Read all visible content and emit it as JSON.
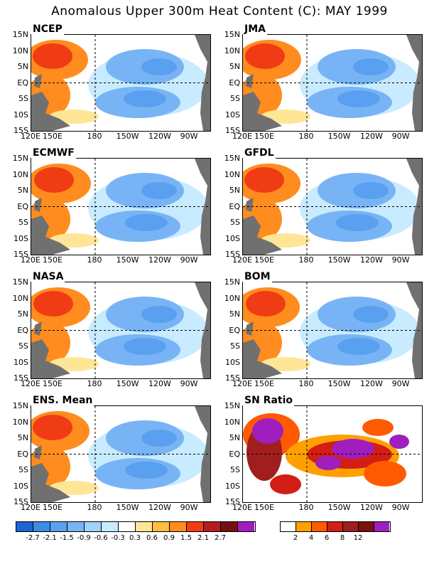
{
  "title": "Anomalous Upper 300m Heat Content (C): MAY 1999",
  "lat_labels": [
    "15N",
    "10N",
    "5N",
    "EQ",
    "5S",
    "10S",
    "15S"
  ],
  "lon_labels": [
    "120E",
    "150E",
    "180",
    "150W",
    "120W",
    "90W"
  ],
  "panels": [
    {
      "name": "NCEP"
    },
    {
      "name": "JMA"
    },
    {
      "name": "ECMWF"
    },
    {
      "name": "GFDL"
    },
    {
      "name": "NASA"
    },
    {
      "name": "BOM"
    },
    {
      "name": "ENS. Mean"
    },
    {
      "name": "SN Ratio"
    }
  ],
  "colorbar_anomaly": {
    "labels": [
      "-2.7",
      "-2.1",
      "-1.5",
      "-0.9",
      "-0.6",
      "-0.3",
      "0.3",
      "0.6",
      "0.9",
      "1.5",
      "2.1",
      "2.7"
    ],
    "colors": [
      "#1e64d2",
      "#3c8ce6",
      "#5aa0f0",
      "#78b4f5",
      "#a0d2fa",
      "#c8ebff",
      "#ffffff",
      "#ffe696",
      "#ffbe3c",
      "#ff8c1e",
      "#f03c14",
      "#b41e1e",
      "#780f0f",
      "#a01ebe"
    ]
  },
  "colorbar_snr": {
    "labels": [
      "2",
      "4",
      "6",
      "8",
      "12"
    ],
    "colors": [
      "#ffffff",
      "#ffa000",
      "#ff5a00",
      "#d21e14",
      "#a01e1e",
      "#7d0f0f",
      "#a01ebe"
    ]
  },
  "colors": {
    "land": "#707070",
    "ocean_cold": "#78b4f5",
    "ocean_cool": "#c8ebff",
    "ocean_warm": "#ff8c1e",
    "ocean_hot": "#f03c14"
  }
}
